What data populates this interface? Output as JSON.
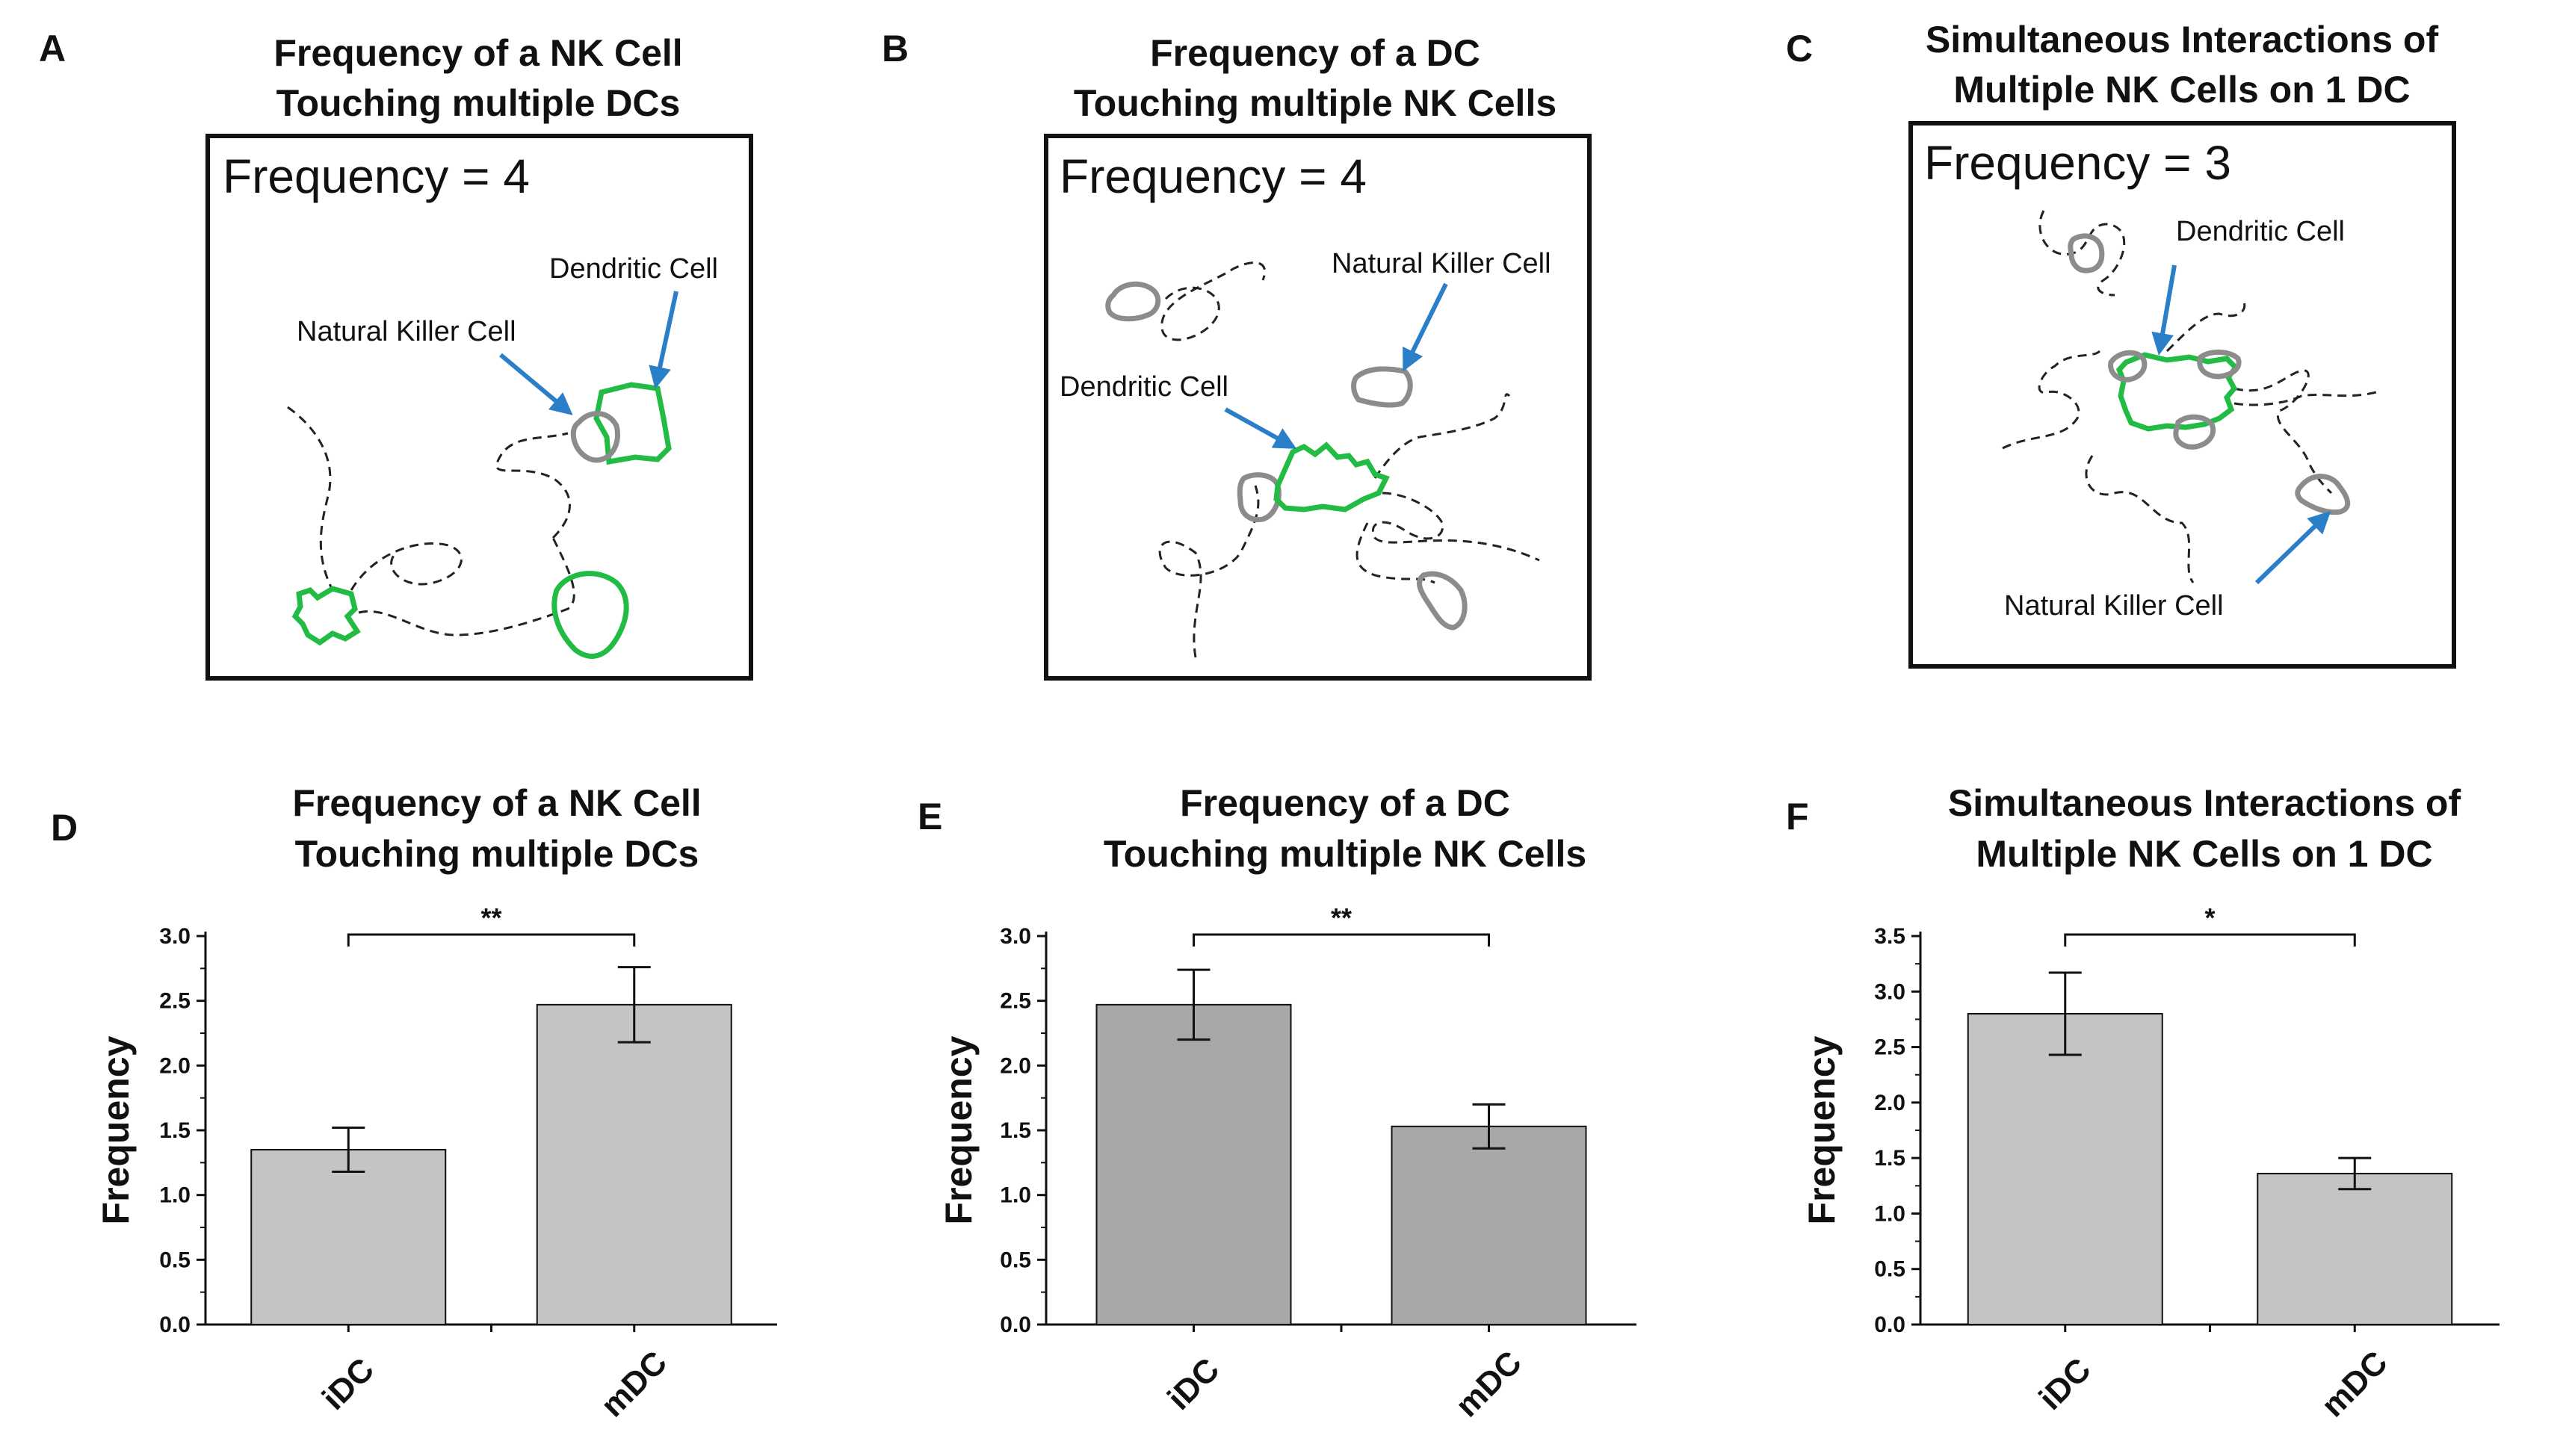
{
  "schematics": [
    {
      "panel": "A",
      "title_lines": [
        "Frequency of a NK Cell",
        "Touching multiple DCs"
      ],
      "frequency_text": "Frequency = 4",
      "labels": {
        "dendritic": "Dendritic Cell",
        "nk": "Natural Killer Cell"
      }
    },
    {
      "panel": "B",
      "title_lines": [
        "Frequency of a DC",
        "Touching multiple NK Cells"
      ],
      "frequency_text": "Frequency = 4",
      "labels": {
        "dendritic": "Dendritic Cell",
        "nk": "Natural Killer Cell"
      }
    },
    {
      "panel": "C",
      "title_lines": [
        "Simultaneous Interactions of",
        "Multiple NK Cells on 1 DC"
      ],
      "frequency_text": "Frequency = 3",
      "labels": {
        "dendritic": "Dendritic Cell",
        "nk": "Natural Killer Cell"
      }
    }
  ],
  "colors": {
    "dc_outline": "#22bb44",
    "nk_outline": "#8c8c8c",
    "arrow": "#2a7fc8",
    "bar_light": "#c4c4c4",
    "bar_dark": "#a8a8a8"
  },
  "chart_data": [
    {
      "panel": "D",
      "type": "bar",
      "title": "Frequency of a NK Cell Touching multiple DCs",
      "title_lines": [
        "Frequency of a NK Cell",
        "Touching multiple DCs"
      ],
      "categories": [
        "iDC",
        "mDC"
      ],
      "values": [
        1.35,
        2.47
      ],
      "errors": [
        0.17,
        0.29
      ],
      "ylabel": "Frequency",
      "xlabel": "",
      "ylim": [
        0,
        3.0
      ],
      "yticks": [
        "0.0",
        "0.5",
        "1.0",
        "1.5",
        "2.0",
        "2.5",
        "3.0"
      ],
      "significance": "**",
      "bar_colors": [
        "#c4c4c4",
        "#c4c4c4"
      ],
      "grid": false
    },
    {
      "panel": "E",
      "type": "bar",
      "title": "Frequency of a DC Touching multiple NK Cells",
      "title_lines": [
        "Frequency of a DC",
        "Touching multiple NK Cells"
      ],
      "categories": [
        "iDC",
        "mDC"
      ],
      "values": [
        2.47,
        1.53
      ],
      "errors": [
        0.27,
        0.17
      ],
      "ylabel": "Frequency",
      "xlabel": "",
      "ylim": [
        0,
        3.0
      ],
      "yticks": [
        "0.0",
        "0.5",
        "1.0",
        "1.5",
        "2.0",
        "2.5",
        "3.0"
      ],
      "significance": "**",
      "bar_colors": [
        "#a8a8a8",
        "#a8a8a8"
      ],
      "grid": false
    },
    {
      "panel": "F",
      "type": "bar",
      "title": "Simultaneous Interactions of Multiple NK Cells on 1 DC",
      "title_lines": [
        "Simultaneous Interactions of",
        "Multiple NK Cells on 1 DC"
      ],
      "categories": [
        "iDC",
        "mDC"
      ],
      "values": [
        2.8,
        1.36
      ],
      "errors": [
        0.37,
        0.14
      ],
      "ylabel": "Frequency",
      "xlabel": "",
      "ylim": [
        0,
        3.5
      ],
      "yticks": [
        "0.0",
        "0.5",
        "1.0",
        "1.5",
        "2.0",
        "2.5",
        "3.0",
        "3.5"
      ],
      "significance": "*",
      "bar_colors": [
        "#c4c4c4",
        "#c4c4c4"
      ],
      "grid": false
    }
  ]
}
